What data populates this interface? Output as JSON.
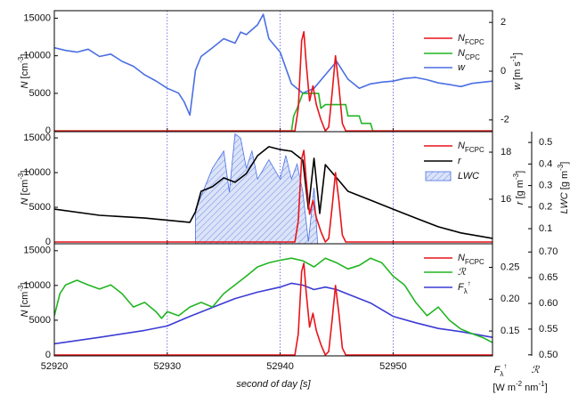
{
  "chart_data": [
    {
      "type": "line",
      "xlim": [
        52920,
        52958.8
      ],
      "xticks": [
        52920,
        52930,
        52940,
        52950
      ],
      "grid": true,
      "ylim": [
        -100,
        16000
      ],
      "yticks": [
        0,
        5000,
        10000,
        15000
      ],
      "ylabel": [
        {
          "t": "N",
          "s": "i"
        },
        {
          "t": " [cm"
        },
        {
          "t": "-3",
          "s": "sup"
        },
        {
          "t": "]"
        }
      ],
      "y2lim": [
        -2.48,
        2.48
      ],
      "y2ticks": [
        -2,
        0,
        2
      ],
      "y2label": [
        {
          "t": "w",
          "s": "i"
        },
        {
          "t": " [m s"
        },
        {
          "t": "-1",
          "s": "sup"
        },
        {
          "t": "]"
        }
      ],
      "series": [
        {
          "name": [
            {
              "t": "N",
              "s": "i"
            },
            {
              "t": "FCPC",
              "s": "sub"
            }
          ],
          "color": "#e8141a",
          "x": [
            52920,
            52941.3,
            52941.6,
            52941.9,
            52942.1,
            52942.3,
            52942.6,
            52942.9,
            52943.2,
            52943.6,
            52944.0,
            52944.3,
            52944.6,
            52944.9,
            52945.2,
            52945.5,
            52945.8,
            52958.8
          ],
          "values": [
            0,
            0,
            3000,
            12000,
            13200,
            9000,
            4000,
            6000,
            3500,
            1500,
            0,
            500,
            5000,
            10000,
            6000,
            1000,
            0,
            0
          ]
        },
        {
          "name": [
            {
              "t": "N",
              "s": "i"
            },
            {
              "t": "CPC",
              "s": "sub"
            }
          ],
          "color": "#22b522",
          "x": [
            52920,
            52941.0,
            52941.2,
            52941.5,
            52942.0,
            52943.4,
            52943.6,
            52944.0,
            52945.8,
            52946.0,
            52947.0,
            52947.2,
            52948.0,
            52948.2,
            52958.8
          ],
          "values": [
            0,
            0,
            2000,
            3000,
            5000,
            5000,
            3000,
            3500,
            3500,
            2000,
            2000,
            1000,
            1000,
            0,
            0
          ]
        },
        {
          "name": [
            {
              "t": "w",
              "s": "i"
            }
          ],
          "color": "#4a6fe3",
          "axis": "y2",
          "x": [
            52920,
            52921,
            52922,
            52923,
            52924,
            52925,
            52926,
            52927,
            52928,
            52929,
            52930,
            52931,
            52931.5,
            52932,
            52932.5,
            52933,
            52934,
            52935,
            52936,
            52936.5,
            52937,
            52938,
            52938.5,
            52939,
            52940,
            52941,
            52942,
            52943,
            52944,
            52945,
            52946,
            52947,
            52948,
            52949,
            52950,
            52951,
            52952,
            52953,
            52954,
            52955,
            52956,
            52957,
            52958.8
          ],
          "values": [
            0.96,
            0.85,
            0.78,
            0.9,
            0.6,
            0.7,
            0.4,
            0.2,
            -0.15,
            -0.4,
            -0.7,
            -0.9,
            -1.26,
            -1.8,
            0.04,
            0.6,
            0.96,
            1.33,
            1.15,
            1.6,
            1.5,
            1.9,
            2.33,
            1.33,
            0.78,
            -0.52,
            -0.9,
            -0.7,
            -0.15,
            0.4,
            -0.33,
            -0.7,
            -0.52,
            -0.45,
            -0.41,
            -0.3,
            -0.26,
            -0.35,
            -0.48,
            -0.55,
            -0.63,
            -0.5,
            -0.41
          ]
        }
      ]
    },
    {
      "type": "line",
      "xlim": [
        52920,
        52958.8
      ],
      "xticks": [
        52920,
        52930,
        52940,
        52950
      ],
      "grid": true,
      "ylim": [
        -250,
        15900
      ],
      "yticks": [
        0,
        5000,
        10000,
        15000
      ],
      "ylabel": [
        {
          "t": "N",
          "s": "i"
        },
        {
          "t": " [cm"
        },
        {
          "t": "-3",
          "s": "sup"
        },
        {
          "t": "]"
        }
      ],
      "y2lim": [
        14.11,
        18.87
      ],
      "y2ticks": [
        16,
        18
      ],
      "y2label": [
        {
          "t": "r",
          "s": "i"
        },
        {
          "t": " [g m"
        },
        {
          "t": "-3",
          "s": "sup"
        },
        {
          "t": "]"
        }
      ],
      "y3lim": [
        0.03,
        0.55
      ],
      "y3ticks": [
        0.1,
        0.2,
        0.3,
        0.4,
        0.5
      ],
      "y3label": [
        {
          "t": "LWC",
          "s": "i"
        },
        {
          "t": " [g m"
        },
        {
          "t": "-3",
          "s": "sup"
        },
        {
          "t": "]"
        }
      ],
      "series": [
        {
          "name": [
            {
              "t": "N",
              "s": "i"
            },
            {
              "t": "FCPC",
              "s": "sub"
            }
          ],
          "color": "#e8141a",
          "x": [
            52920,
            52941.3,
            52941.6,
            52941.9,
            52942.1,
            52942.3,
            52942.6,
            52942.9,
            52943.2,
            52943.6,
            52944.0,
            52944.3,
            52944.6,
            52944.9,
            52945.2,
            52945.5,
            52945.8,
            52958.8
          ],
          "values": [
            0,
            0,
            3000,
            12000,
            13200,
            9000,
            4000,
            6000,
            3500,
            1500,
            0,
            500,
            5000,
            10000,
            6000,
            1000,
            0,
            0
          ]
        },
        {
          "name": [
            {
              "t": "r",
              "s": "i"
            }
          ],
          "color": "#000000",
          "axis": "y2",
          "x": [
            52920,
            52924,
            52928,
            52932,
            52932.5,
            52933,
            52934,
            52935,
            52936,
            52937,
            52938,
            52939,
            52940,
            52941,
            52942,
            52942.5,
            52943,
            52943.5,
            52944,
            52945,
            52946,
            52948,
            52950,
            52952,
            52954,
            52956,
            52958.8
          ],
          "values": [
            15.58,
            15.32,
            15.2,
            15.02,
            15.47,
            16.34,
            16.53,
            16.91,
            16.72,
            17.09,
            17.85,
            18.23,
            18.11,
            18.04,
            17.66,
            15.58,
            17.74,
            15.4,
            17.47,
            16.91,
            16.34,
            15.96,
            15.58,
            15.2,
            14.83,
            14.57,
            14.34
          ]
        },
        {
          "name": [
            {
              "t": "LWC",
              "s": "i"
            }
          ],
          "color": "#4a6fe3",
          "axis": "y3",
          "style": "area",
          "x": [
            52932.5,
            52933,
            52934,
            52935,
            52935.5,
            52936,
            52936.5,
            52937,
            52937.5,
            52938,
            52939,
            52940,
            52940.5,
            52941,
            52941.5,
            52942,
            52942.5,
            52943,
            52943.3
          ],
          "values": [
            0.19,
            0.25,
            0.38,
            0.46,
            0.27,
            0.54,
            0.52,
            0.38,
            0.46,
            0.33,
            0.42,
            0.33,
            0.44,
            0.33,
            0.4,
            0.27,
            0.04,
            0.29,
            0.04
          ]
        }
      ]
    },
    {
      "type": "line",
      "xlim": [
        52920,
        52958.8
      ],
      "xticks": [
        52920,
        52930,
        52940,
        52950
      ],
      "grid": true,
      "xlabel": [
        {
          "t": "second of day [s]",
          "s": "i"
        }
      ],
      "ylim": [
        -130,
        16000
      ],
      "yticks": [
        0,
        5000,
        10000,
        15000
      ],
      "ylabel": [
        {
          "t": "N",
          "s": "i"
        },
        {
          "t": " [cm"
        },
        {
          "t": "-3",
          "s": "sup"
        },
        {
          "t": "]"
        }
      ],
      "y2lim": [
        0.111,
        0.287
      ],
      "y2ticks": [
        0.15,
        {
          "value": 0.2,
          "label": "0.20"
        },
        0.25
      ],
      "y2label": [
        {
          "t": "F",
          "s": "i"
        },
        {
          "t": "λ",
          "s": "sub"
        },
        {
          "t": "↑",
          "s": "sup"
        }
      ],
      "y2unit": [
        {
          "t": "[W m"
        },
        {
          "t": "-2",
          "s": "sup"
        },
        {
          "t": " nm"
        },
        {
          "t": "-1",
          "s": "sup"
        },
        {
          "t": "]"
        }
      ],
      "y3lim": [
        0.498,
        0.716
      ],
      "y3ticks": [
        {
          "value": 0.5,
          "label": "0.50"
        },
        {
          "value": 0.55,
          "label": "0.55"
        },
        {
          "value": 0.6,
          "label": "0.60"
        },
        {
          "value": 0.65,
          "label": "0.65"
        },
        {
          "value": 0.7,
          "label": "0.70"
        }
      ],
      "y3label": [
        {
          "t": "ℛ",
          "s": "i"
        }
      ],
      "series": [
        {
          "name": [
            {
              "t": "N",
              "s": "i"
            },
            {
              "t": "FCPC",
              "s": "sub"
            }
          ],
          "color": "#e8141a",
          "x": [
            52920,
            52941.3,
            52941.6,
            52941.9,
            52942.1,
            52942.3,
            52942.6,
            52942.9,
            52943.2,
            52943.6,
            52944.0,
            52944.3,
            52944.6,
            52944.9,
            52945.2,
            52945.5,
            52945.8,
            52958.8
          ],
          "values": [
            0,
            0,
            3000,
            12000,
            13200,
            9000,
            4000,
            6000,
            3500,
            1500,
            0,
            500,
            5000,
            10000,
            6000,
            1000,
            0,
            0
          ]
        },
        {
          "name": [
            {
              "t": "ℛ",
              "s": "i"
            }
          ],
          "color": "#22b522",
          "axis": "y3",
          "x": [
            52920,
            52920.5,
            52921,
            52922,
            52923,
            52924,
            52925,
            52926,
            52927,
            52928,
            52929,
            52929.5,
            52930,
            52931,
            52932,
            52933,
            52934,
            52935,
            52936,
            52937,
            52938,
            52939,
            52940,
            52941,
            52942,
            52943,
            52944,
            52945,
            52946,
            52947,
            52948,
            52949,
            52950,
            52951,
            52952,
            52953,
            52954,
            52955,
            52956,
            52957,
            52958,
            52958.8
          ],
          "values": [
            0.576,
            0.619,
            0.636,
            0.645,
            0.636,
            0.628,
            0.636,
            0.619,
            0.593,
            0.602,
            0.584,
            0.571,
            0.584,
            0.576,
            0.593,
            0.602,
            0.593,
            0.619,
            0.636,
            0.653,
            0.671,
            0.679,
            0.684,
            0.688,
            0.683,
            0.671,
            0.688,
            0.679,
            0.667,
            0.674,
            0.688,
            0.679,
            0.653,
            0.636,
            0.602,
            0.576,
            0.593,
            0.567,
            0.55,
            0.541,
            0.533,
            0.524
          ]
        },
        {
          "name": [
            {
              "t": "F",
              "s": "i"
            },
            {
              "t": "λ",
              "s": "sub"
            },
            {
              "t": "↑",
              "s": "sup"
            }
          ],
          "color": "#3b3bd6",
          "axis": "y2",
          "x": [
            52920,
            52924,
            52928,
            52930,
            52932,
            52934,
            52936,
            52938,
            52940,
            52941,
            52942,
            52943,
            52944,
            52945,
            52946,
            52948,
            52950,
            52952,
            52954,
            52956,
            52958.8
          ],
          "values": [
            0.13,
            0.14,
            0.151,
            0.158,
            0.173,
            0.187,
            0.201,
            0.211,
            0.219,
            0.225,
            0.222,
            0.215,
            0.219,
            0.215,
            0.208,
            0.194,
            0.173,
            0.163,
            0.154,
            0.149,
            0.14
          ]
        }
      ]
    }
  ]
}
